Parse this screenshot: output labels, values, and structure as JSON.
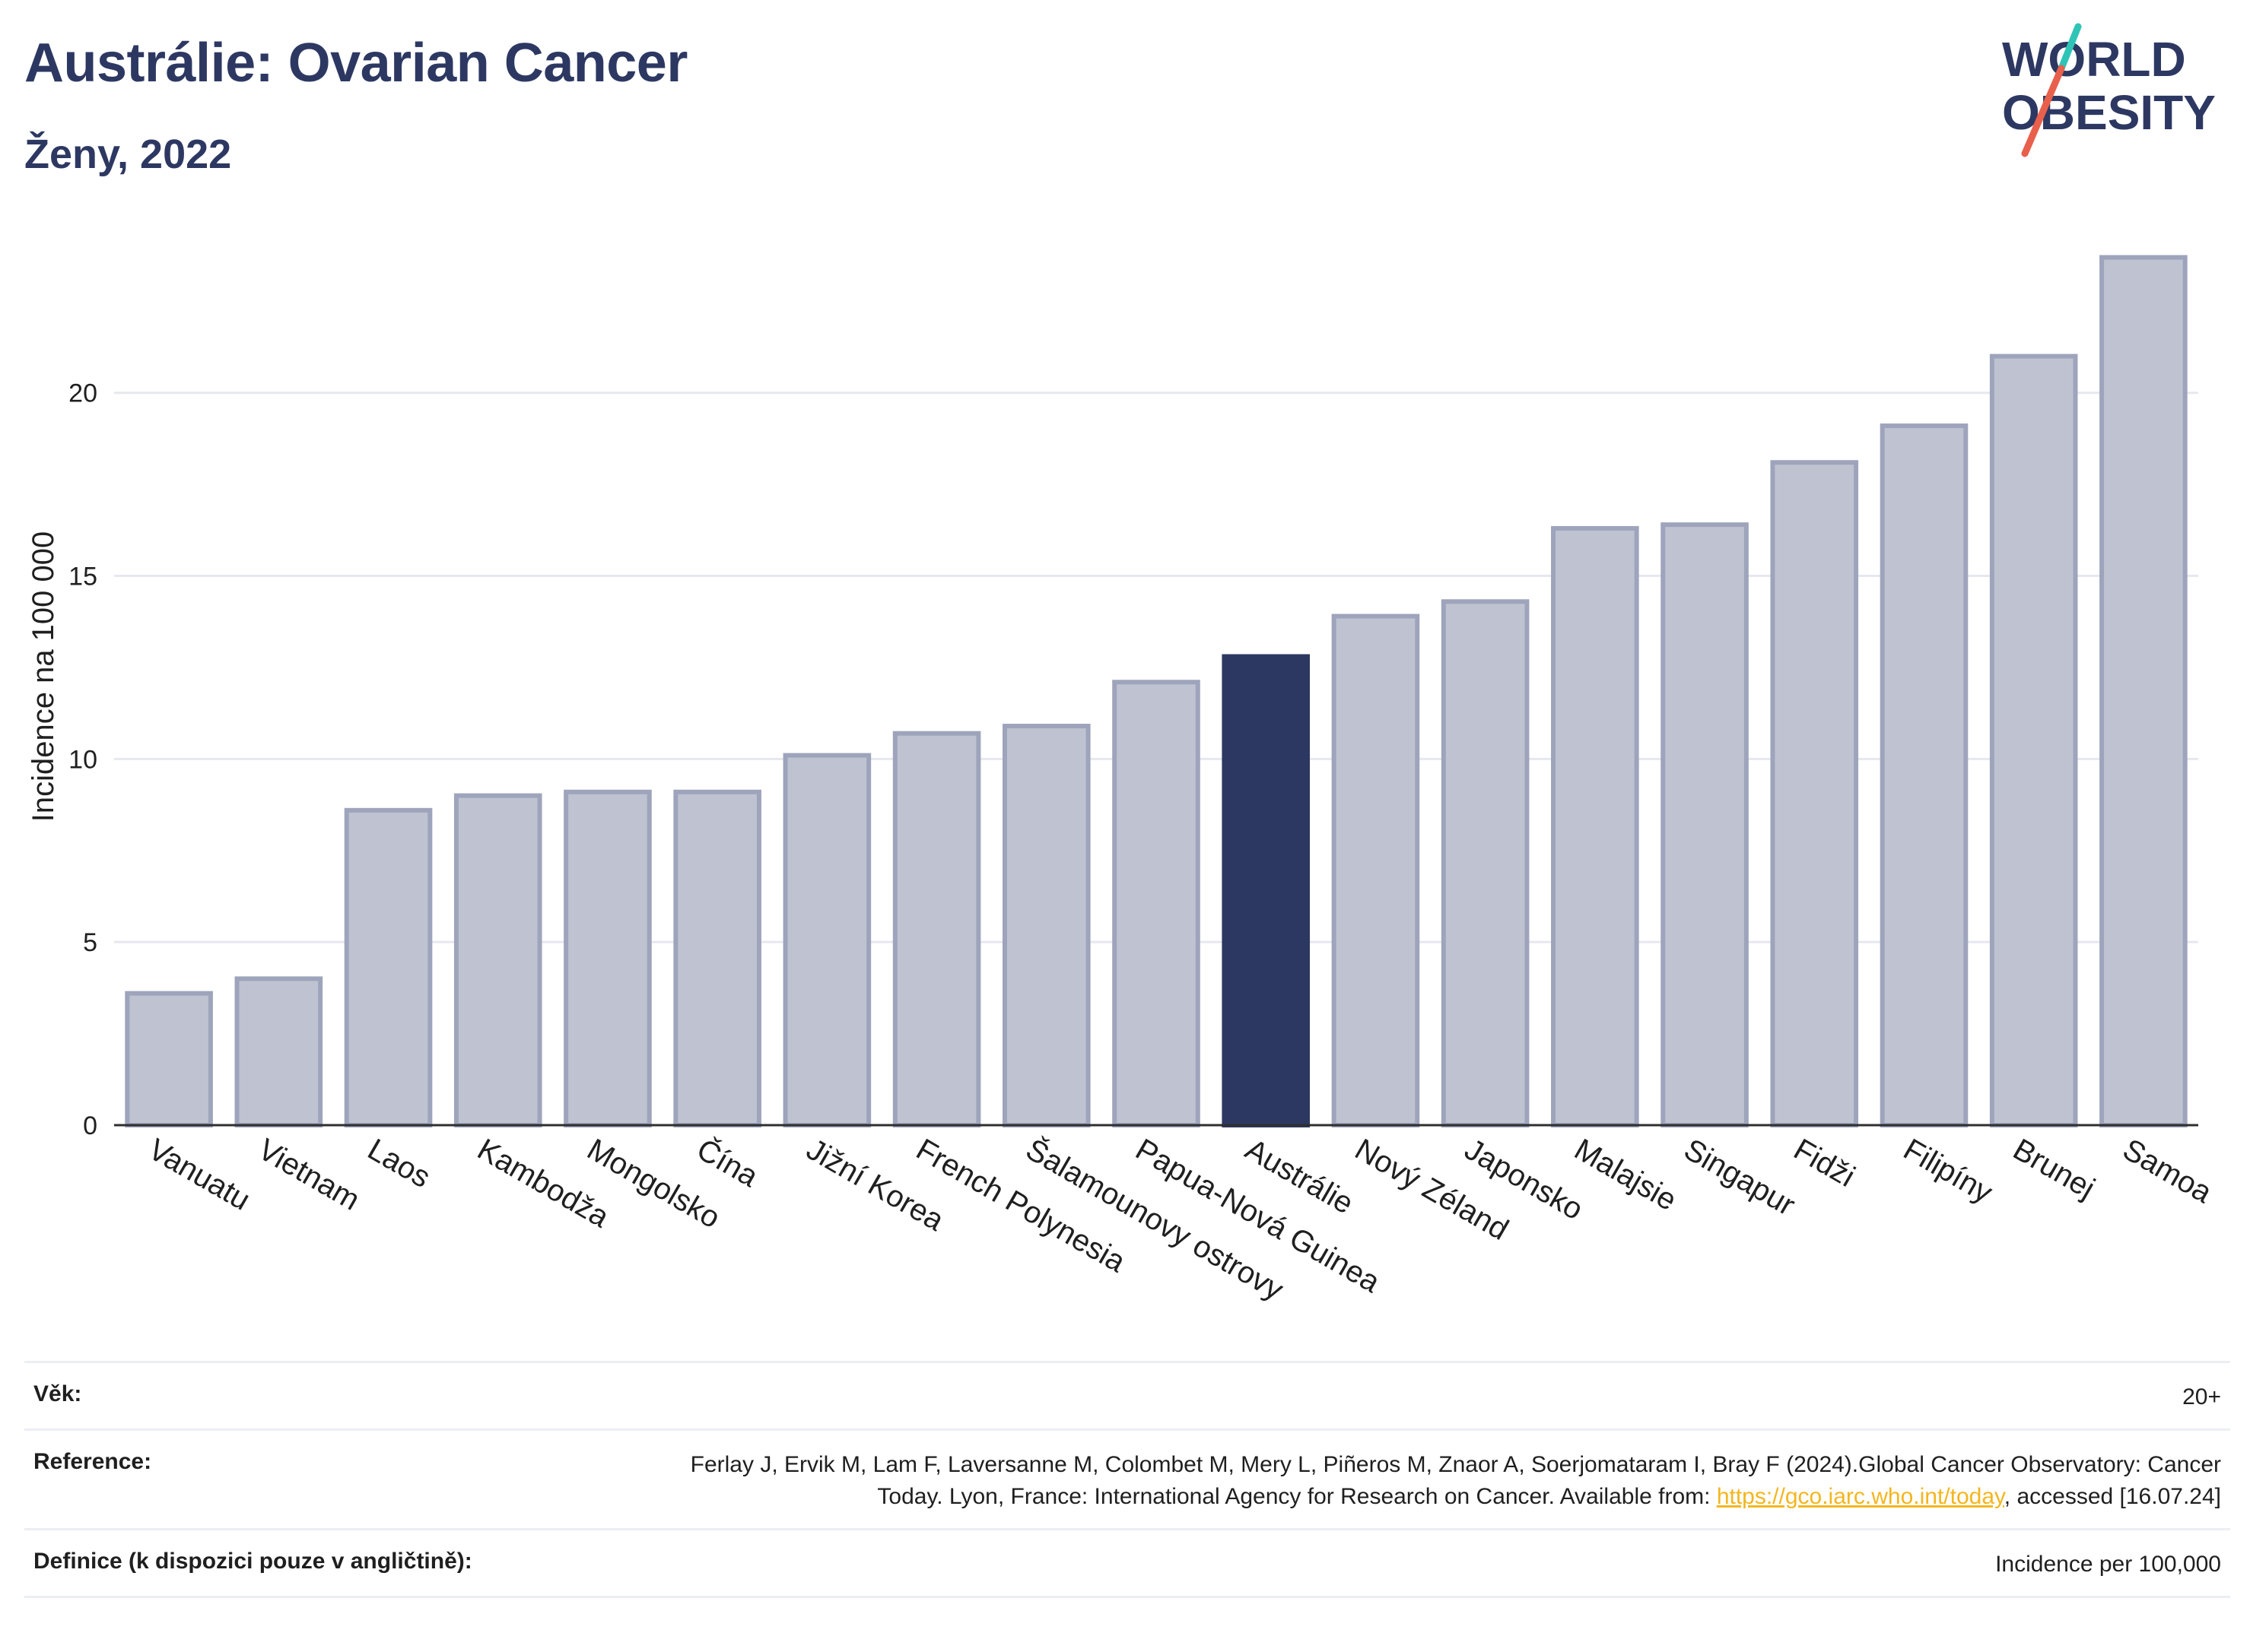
{
  "header": {
    "title": "Austrálie: Ovarian Cancer",
    "subtitle": "Ženy, 2022"
  },
  "logo": {
    "line1": "WORLD",
    "line2": "OBESITY",
    "text_color": "#2d3862",
    "slash_colors": [
      "#2ec4b6",
      "#e8604c"
    ]
  },
  "colors": {
    "bar": "#bfc3d1",
    "bar_outline": "#9ea4bb",
    "highlight": "#2d3862",
    "gridline": "#e6e8ef",
    "axis": "#2f2f2f"
  },
  "chart_data": {
    "type": "bar",
    "ylabel": "Incidence na 100 000",
    "ylim": [
      0,
      24.5
    ],
    "yticks": [
      0,
      5,
      10,
      15,
      20
    ],
    "grid": true,
    "highlight": "Austrálie",
    "categories": [
      "Vanuatu",
      "Vietnam",
      "Laos",
      "Kambodža",
      "Mongolsko",
      "Čína",
      "Jižní Korea",
      "French Polynesia",
      "Šalamounovy ostrovy",
      "Papua-Nová Guinea",
      "Austrálie",
      "Nový Zéland",
      "Japonsko",
      "Malajsie",
      "Singapur",
      "Fidži",
      "Filipíny",
      "Brunej",
      "Samoa"
    ],
    "values": [
      3.6,
      4.0,
      8.6,
      9.0,
      9.1,
      9.1,
      10.1,
      10.7,
      10.9,
      12.1,
      12.8,
      13.9,
      14.3,
      16.3,
      16.4,
      18.1,
      19.1,
      21.0,
      23.7
    ]
  },
  "meta": [
    {
      "key": "Věk:",
      "value": "20+"
    },
    {
      "key": "Reference:",
      "value_before": "Ferlay J, Ervik M, Lam F, Laversanne M, Colombet M, Mery L, Piñeros M, Znaor A, Soerjomataram I, Bray F (2024).Global Cancer Observatory: Cancer Today. Lyon, France: International Agency for Research on Cancer. Available from: ",
      "link": "https://gco.iarc.who.int/today",
      "value_after": ", accessed [16.07.24]"
    },
    {
      "key": "Definice (k dispozici pouze v angličtině):",
      "value": "Incidence per 100,000"
    }
  ]
}
